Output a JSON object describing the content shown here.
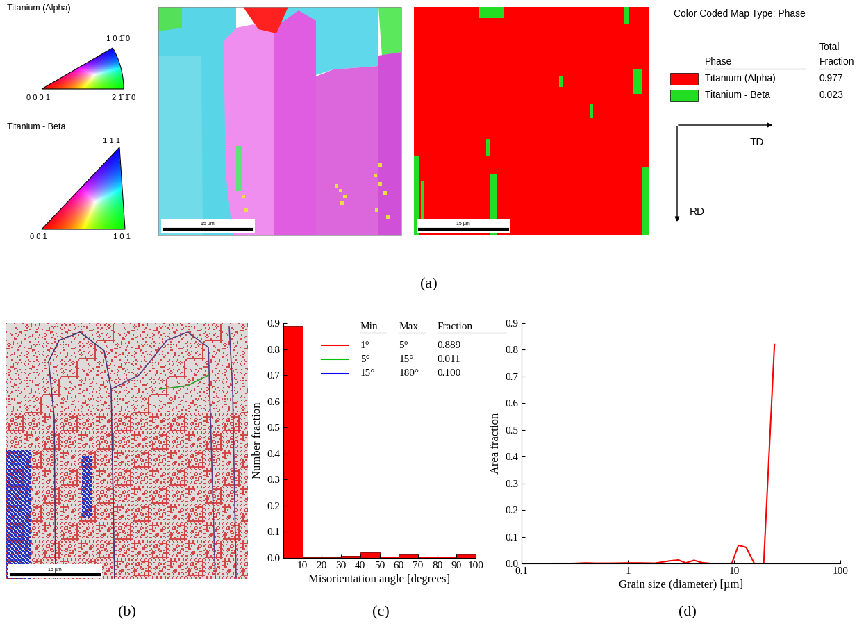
{
  "chart_data": [
    {
      "type": "histogram",
      "xlabel": "Misorientation angle [degrees]",
      "ylabel": "Number fraction",
      "bins": [
        0,
        10,
        20,
        30,
        40,
        50,
        60,
        70,
        80,
        90,
        100
      ],
      "counts": [
        0.89,
        0.002,
        0.003,
        0.008,
        0.02,
        0.006,
        0.012,
        0.004,
        0.005,
        0.012
      ],
      "color": "#ff0000",
      "xlim": [
        0,
        100
      ],
      "xticks": [
        10,
        20,
        30,
        40,
        50,
        60,
        70,
        80,
        90,
        100
      ],
      "ylim": [
        0,
        0.9
      ],
      "yticks": [
        {
          "value": 0,
          "label": "0.0"
        },
        0.1,
        0.2,
        0.3,
        0.4,
        0.5,
        0.6,
        0.7,
        0.8,
        0.9
      ],
      "legend_table": {
        "columns": [
          "Min",
          "Max",
          "Fraction"
        ],
        "rows": [
          {
            "min": "1°",
            "max": "5°",
            "fraction": "0.889",
            "color": "#ff0000"
          },
          {
            "min": "5°",
            "max": "15°",
            "fraction": "0.011",
            "color": "#00c000"
          },
          {
            "min": "15°",
            "max": "180°",
            "fraction": "0.100",
            "color": "#0000ff"
          }
        ]
      }
    },
    {
      "type": "line",
      "xlabel": "Grain size (diameter) [µm]",
      "ylabel": "Area fraction",
      "x": [
        0.2,
        0.3,
        0.4,
        0.5,
        0.7,
        1.0,
        1.3,
        1.8,
        2.5,
        3.0,
        3.5,
        4.2,
        5.0,
        6.0,
        9.5,
        11,
        13,
        15.5,
        19,
        24
      ],
      "values": [
        0.0,
        0.0,
        0.002,
        0.001,
        0.001,
        0.002,
        0.002,
        0.001,
        0.01,
        0.013,
        0.002,
        0.012,
        0.003,
        0.0,
        0.0,
        0.068,
        0.06,
        0.0,
        0.0,
        0.82
      ],
      "color": "#ff0000",
      "log": "x",
      "xlim": [
        0.1,
        100
      ],
      "xticks": [
        0.1,
        1,
        10,
        100
      ],
      "ylim": [
        0,
        0.9
      ],
      "yticks": [
        {
          "value": 0,
          "label": "0.0"
        },
        0.1,
        0.2,
        0.3,
        0.4,
        0.5,
        0.6,
        0.7,
        0.8,
        0.9
      ]
    }
  ],
  "panel_labels": [
    "(a)",
    "(b)",
    "(c)",
    "(d)"
  ],
  "ipf_keys": [
    {
      "phase": "Titanium (Alpha)",
      "corners": [
        "0 0 0 1",
        "2 1̄ 1̄ 0",
        "1 0 1̄ 0"
      ]
    },
    {
      "phase": "Titanium - Beta",
      "corners": [
        "0 0 1",
        "1 0 1",
        "1 1 1"
      ]
    }
  ],
  "scale_bars": [
    "15 µm",
    "15 µm",
    "15 µm"
  ],
  "phase_legend": {
    "title": "Color Coded Map Type: Phase",
    "columns": [
      "Phase",
      "Total\nFraction"
    ],
    "rows": [
      {
        "phase": "Titanium (Alpha)",
        "fraction": "0.977",
        "color": "#ff0000"
      },
      {
        "phase": "Titanium - Beta",
        "fraction": "0.023",
        "color": "#22dd22"
      }
    ]
  },
  "directions": {
    "x": "TD",
    "y": "RD"
  }
}
